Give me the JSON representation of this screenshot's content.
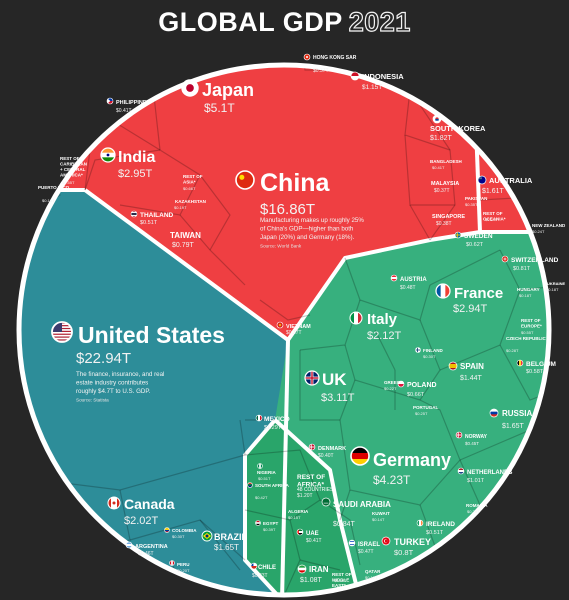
{
  "title": {
    "main": "GLOBAL GDP",
    "year": "2021"
  },
  "colors": {
    "asia_pacific": "#ef3f42",
    "americas": "#2d8d99",
    "europe": "#37b07e",
    "middle_east_africa": "#29a56a",
    "background": "#262626",
    "border": "#ffffff"
  },
  "chart_data": {
    "type": "voronoi-treemap",
    "title": "GLOBAL GDP 2021",
    "regions": [
      {
        "name": "Asia-Pacific",
        "color": "#ef3f42",
        "countries": [
          {
            "name": "China",
            "value": "$16.86T",
            "gdp": 16.86,
            "flag": "china",
            "note": "Manufacturing makes up roughly 25% of China's GDP—higher than both Japan (20%) and Germany (18%).",
            "source": "Source: World Bank"
          },
          {
            "name": "Japan",
            "value": "$5.1T",
            "gdp": 5.1,
            "flag": "japan"
          },
          {
            "name": "India",
            "value": "$2.95T",
            "gdp": 2.95,
            "flag": "india"
          },
          {
            "name": "South Korea",
            "value": "$1.82T",
            "gdp": 1.82,
            "flag": "korea"
          },
          {
            "name": "Australia",
            "value": "$1.61T",
            "gdp": 1.61,
            "flag": "australia"
          },
          {
            "name": "Indonesia",
            "value": "$1.15T",
            "gdp": 1.15,
            "flag": "indonesia"
          },
          {
            "name": "Taiwan",
            "value": "$0.79T",
            "gdp": 0.79,
            "flag": "taiwan"
          },
          {
            "name": "Thailand",
            "value": "$0.51T",
            "gdp": 0.51,
            "flag": "thailand"
          },
          {
            "name": "Hong Kong SAR",
            "value": "$0.37T",
            "gdp": 0.37,
            "flag": "hongkong"
          },
          {
            "name": "Philippines",
            "value": "$0.41T",
            "gdp": 0.41,
            "flag": "philippines"
          },
          {
            "name": "Singapore",
            "value": "$0.38T",
            "gdp": 0.38,
            "flag": "singapore"
          },
          {
            "name": "Malaysia",
            "value": "$0.37T",
            "gdp": 0.37,
            "flag": "malaysia"
          },
          {
            "name": "Vietnam",
            "value": "$0.37T",
            "gdp": 0.37,
            "flag": "vietnam"
          },
          {
            "name": "Bangladesh",
            "value": "$0.41T",
            "gdp": 0.41,
            "flag": "bangladesh"
          },
          {
            "name": "Rest of Asia*",
            "value": "$0.66T",
            "gdp": 0.66,
            "flag": ""
          },
          {
            "name": "Rest of Oceania*",
            "value": "$0.34T",
            "gdp": 0.34,
            "flag": ""
          },
          {
            "name": "Kazakhstan",
            "value": "$0.19T",
            "gdp": 0.19,
            "flag": "kaz"
          },
          {
            "name": "Pakistan",
            "value": "$0.35T",
            "gdp": 0.35,
            "flag": "pak"
          },
          {
            "name": "New Zealand",
            "value": "$0.24T",
            "gdp": 0.24,
            "flag": "nz"
          }
        ]
      },
      {
        "name": "Americas",
        "color": "#2d8d99",
        "countries": [
          {
            "name": "United States",
            "value": "$22.94T",
            "gdp": 22.94,
            "flag": "usa",
            "note": "The finance, insurance, and real estate industry contributes roughly $4.7T to U.S. GDP.",
            "source": "Source: Statista"
          },
          {
            "name": "Canada",
            "value": "$2.02T",
            "gdp": 2.02,
            "flag": "canada"
          },
          {
            "name": "Brazil",
            "value": "$1.65T",
            "gdp": 1.65,
            "flag": "brazil"
          },
          {
            "name": "Mexico",
            "value": "$1.29T",
            "gdp": 1.29,
            "flag": "mexico"
          },
          {
            "name": "Argentina",
            "value": "$0.46T",
            "gdp": 0.46,
            "flag": "argentina"
          },
          {
            "name": "Colombia",
            "value": "$0.30T",
            "gdp": 0.3,
            "flag": "colombia"
          },
          {
            "name": "Chile",
            "value": "$0.33T",
            "gdp": 0.33,
            "flag": "chile"
          },
          {
            "name": "Peru",
            "value": "$0.20T",
            "gdp": 0.2,
            "flag": "peru"
          },
          {
            "name": "Puerto Rico",
            "value": "$0.10T",
            "gdp": 0.1,
            "flag": "puertorico"
          },
          {
            "name": "Rest of Caribbean + Central America*",
            "value": "$0.55T",
            "gdp": 0.55,
            "flag": ""
          }
        ]
      },
      {
        "name": "Europe",
        "color": "#37b07e",
        "countries": [
          {
            "name": "Germany",
            "value": "$4.23T",
            "gdp": 4.23,
            "flag": "germany"
          },
          {
            "name": "UK",
            "value": "$3.11T",
            "gdp": 3.11,
            "flag": "uk"
          },
          {
            "name": "France",
            "value": "$2.94T",
            "gdp": 2.94,
            "flag": "france"
          },
          {
            "name": "Italy",
            "value": "$2.12T",
            "gdp": 2.12,
            "flag": "italy"
          },
          {
            "name": "Russia",
            "value": "$1.65T",
            "gdp": 1.65,
            "flag": "russia"
          },
          {
            "name": "Spain",
            "value": "$1.44T",
            "gdp": 1.44,
            "flag": "spain"
          },
          {
            "name": "Netherlands",
            "value": "$1.01T",
            "gdp": 1.01,
            "flag": "netherlands"
          },
          {
            "name": "Switzerland",
            "value": "$0.81T",
            "gdp": 0.81,
            "flag": "switzerland"
          },
          {
            "name": "Poland",
            "value": "$0.66T",
            "gdp": 0.66,
            "flag": "poland"
          },
          {
            "name": "Sweden",
            "value": "$0.62T",
            "gdp": 0.62,
            "flag": "sweden"
          },
          {
            "name": "Belgium",
            "value": "$0.58T",
            "gdp": 0.58,
            "flag": "belgium"
          },
          {
            "name": "Ireland",
            "value": "$0.51T",
            "gdp": 0.51,
            "flag": "ireland"
          },
          {
            "name": "Austria",
            "value": "$0.48T",
            "gdp": 0.48,
            "flag": "austria"
          },
          {
            "name": "Norway",
            "value": "$0.45T",
            "gdp": 0.45,
            "flag": "norway"
          },
          {
            "name": "Denmark",
            "value": "$0.40T",
            "gdp": 0.4,
            "flag": "denmark"
          },
          {
            "name": "Finland",
            "value": "$0.30T",
            "gdp": 0.3,
            "flag": "finland"
          },
          {
            "name": "Portugal",
            "value": "$0.25T",
            "gdp": 0.25,
            "flag": "portugal"
          },
          {
            "name": "Czech Republic",
            "value": "$0.28T",
            "gdp": 0.28,
            "flag": "czech"
          },
          {
            "name": "Romania",
            "value": "$0.29T",
            "gdp": 0.29,
            "flag": "romania"
          },
          {
            "name": "Hungary",
            "value": "$0.18T",
            "gdp": 0.18,
            "flag": "hungary"
          },
          {
            "name": "Greece",
            "value": "$0.22T",
            "gdp": 0.22,
            "flag": "greece"
          },
          {
            "name": "Ukraine",
            "value": "$0.18T",
            "gdp": 0.18,
            "flag": "ukraine"
          },
          {
            "name": "Rest of Europe*",
            "value": "$0.55T",
            "gdp": 0.55,
            "flag": ""
          }
        ]
      },
      {
        "name": "Middle East & Africa",
        "color": "#29a56a",
        "countries": [
          {
            "name": "Saudi Arabia",
            "value": "$0.84T",
            "gdp": 0.84,
            "flag": "saudi"
          },
          {
            "name": "Turkey",
            "value": "$0.8T",
            "gdp": 0.8,
            "flag": "turkey"
          },
          {
            "name": "Iran",
            "value": "$1.08T",
            "gdp": 1.08,
            "flag": "iran"
          },
          {
            "name": "Israel",
            "value": "$0.47T",
            "gdp": 0.47,
            "flag": "israel"
          },
          {
            "name": "UAE",
            "value": "$0.41T",
            "gdp": 0.41,
            "flag": "uae"
          },
          {
            "name": "Rest of Africa*",
            "value": "$1.20T",
            "gdp": 1.2,
            "flag": "",
            "subnote": "48 COUNTRIES"
          },
          {
            "name": "Nigeria",
            "value": "$0.51T",
            "gdp": 0.51,
            "flag": "nigeria"
          },
          {
            "name": "Egypt",
            "value": "$0.39T",
            "gdp": 0.39,
            "flag": "egypt"
          },
          {
            "name": "South Africa",
            "value": "$0.42T",
            "gdp": 0.42,
            "flag": "southafrica"
          },
          {
            "name": "Algeria",
            "value": "$0.15T",
            "gdp": 0.15,
            "flag": "algeria"
          },
          {
            "name": "Rest of Middle East*",
            "value": "$0.56T",
            "gdp": 0.56,
            "flag": ""
          },
          {
            "name": "Qatar",
            "value": "$0.17T",
            "gdp": 0.17,
            "flag": "qatar"
          },
          {
            "name": "Kuwait",
            "value": "$0.14T",
            "gdp": 0.14,
            "flag": "kuwait"
          }
        ]
      }
    ]
  }
}
